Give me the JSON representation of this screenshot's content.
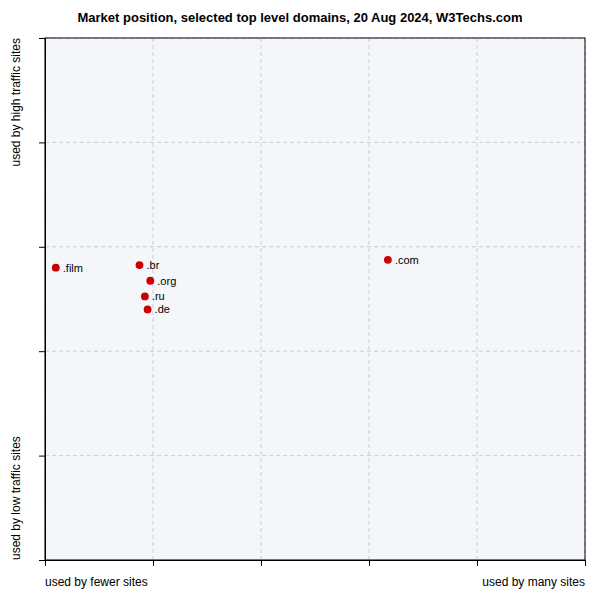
{
  "chart_data": {
    "type": "scatter",
    "title": "Market position, selected top level domains, 20 Aug 2024, W3Techs.com",
    "x_label_left": "used by fewer sites",
    "x_label_right": "used by many sites",
    "y_label_top": "used by high traffic sites",
    "y_label_bottom": "used by low traffic sites",
    "labels": [
      ".film",
      ".br",
      ".org",
      ".ru",
      ".de",
      ".com"
    ],
    "x": [
      0.02,
      0.175,
      0.195,
      0.185,
      0.19,
      0.635
    ],
    "values": [
      0.56,
      0.565,
      0.535,
      0.505,
      0.48,
      0.575
    ],
    "color": "#cc0000",
    "marker": "circle",
    "xlim": [
      0,
      1
    ],
    "ylim": [
      0,
      1
    ],
    "xticks": [
      0,
      0.2,
      0.4,
      0.6,
      0.8,
      1
    ],
    "yticks": [
      0,
      0.2,
      0.4,
      0.6,
      0.8,
      1
    ],
    "grid": true,
    "tick_labels": false
  }
}
